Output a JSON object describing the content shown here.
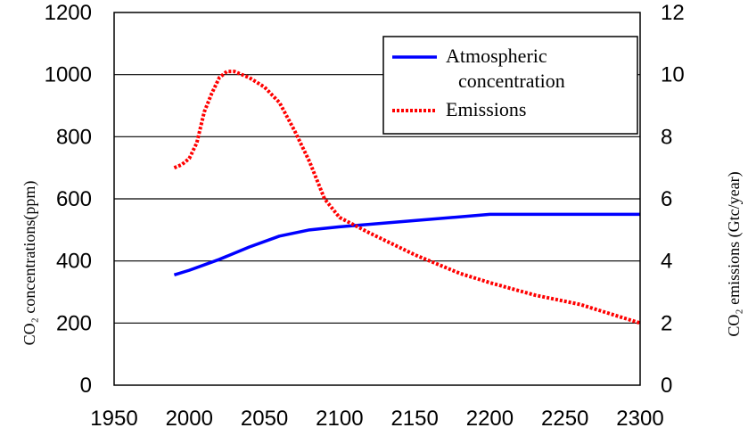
{
  "chart_data": {
    "type": "line",
    "title": "",
    "xlabel": "",
    "ylabel": "CO₂ concentrations(ppm)",
    "ylabel_right": "CO₂ emissions (Gtc/year)",
    "x_ticks": [
      1950,
      2000,
      2050,
      2100,
      2150,
      2200,
      2250,
      2300
    ],
    "y_left_ticks": [
      0,
      200,
      400,
      600,
      800,
      1000,
      1200
    ],
    "y_right_ticks": [
      0,
      2,
      4,
      6,
      8,
      10,
      12
    ],
    "xlim": [
      1950,
      2300
    ],
    "ylim_left": [
      0,
      1200
    ],
    "ylim_right": [
      0,
      12
    ],
    "grid": "horizontal",
    "legend_position": "top-right",
    "colors": {
      "axis": "#000000",
      "atmospheric": "#0000ff",
      "emissions": "#ff0000"
    },
    "series": [
      {
        "name": "Atmospheric concentration",
        "axis": "left",
        "style": "solid",
        "x": [
          1990,
          2000,
          2020,
          2040,
          2060,
          2080,
          2100,
          2150,
          2200,
          2250,
          2300
        ],
        "values": [
          355,
          370,
          405,
          445,
          480,
          500,
          510,
          530,
          550,
          550,
          550
        ]
      },
      {
        "name": "Emissions",
        "axis": "right",
        "style": "dotted",
        "x": [
          1990,
          1995,
          2000,
          2005,
          2010,
          2015,
          2020,
          2025,
          2030,
          2040,
          2050,
          2060,
          2070,
          2080,
          2090,
          2100,
          2120,
          2150,
          2180,
          2200,
          2230,
          2260,
          2280,
          2300
        ],
        "values": [
          7.0,
          7.1,
          7.3,
          7.8,
          8.8,
          9.4,
          9.9,
          10.1,
          10.1,
          9.9,
          9.6,
          9.1,
          8.2,
          7.2,
          6.0,
          5.4,
          4.9,
          4.2,
          3.6,
          3.3,
          2.9,
          2.6,
          2.3,
          2.0
        ]
      }
    ]
  }
}
